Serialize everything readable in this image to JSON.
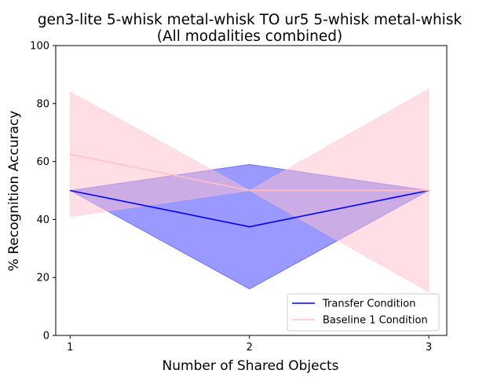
{
  "chart_data": {
    "type": "line",
    "title_line1": "gen3-lite 5-whisk metal-whisk TO ur5 5-whisk metal-whisk",
    "title_line2": "(All modalities combined)",
    "xlabel": "Number of Shared Objects",
    "ylabel": "% Recognition Accuracy",
    "x": [
      1,
      2,
      3
    ],
    "xticks": [
      "1",
      "2",
      "3"
    ],
    "xlim": [
      0.92,
      3.1
    ],
    "ylim": [
      0,
      100
    ],
    "yticks": [
      "0",
      "20",
      "40",
      "60",
      "80",
      "100"
    ],
    "legend_position": "lower right",
    "series": [
      {
        "name": "Transfer Condition",
        "color": "#0000ff",
        "band_color": "#0000ff",
        "band_opacity": 0.4,
        "values": [
          50,
          37.5,
          50
        ],
        "lower": [
          50,
          16,
          50
        ],
        "upper": [
          50,
          59,
          50
        ]
      },
      {
        "name": "Baseline 1 Condition",
        "color": "#ffc0cb",
        "band_color": "#ffc0cb",
        "band_opacity": 0.5,
        "values": [
          62.5,
          50,
          50
        ],
        "lower": [
          41,
          50,
          15
        ],
        "upper": [
          84,
          50,
          85
        ]
      }
    ]
  }
}
